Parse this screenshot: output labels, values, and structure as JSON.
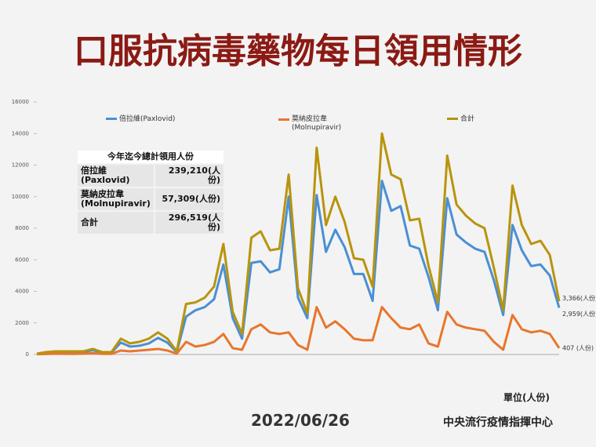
{
  "title": "口服抗病毒藥物每日領用情形",
  "date": "2022/06/26",
  "source": "中央流行疫情指揮中心",
  "unit": "單位(人份)",
  "summary": {
    "header": "今年迄今總計領用人份",
    "rows": [
      [
        "倍拉維\n(Paxlovid)",
        "239,210(人份)"
      ],
      [
        "莫納皮拉韋\n(Molnupiravir)",
        "57,309(人份)"
      ],
      [
        "合計",
        "296,519(人份)"
      ]
    ]
  },
  "chart_data": {
    "type": "line",
    "ylim": [
      0,
      16000
    ],
    "yticks": [
      0,
      2000,
      4000,
      6000,
      8000,
      10000,
      12000,
      14000,
      16000
    ],
    "categories": [
      null,
      null,
      null,
      null,
      null,
      null,
      null,
      null,
      null,
      null,
      null,
      null,
      null,
      null,
      null,
      null,
      null,
      null,
      null,
      null,
      null,
      null,
      null,
      null,
      null,
      null,
      null,
      null,
      null,
      null,
      null,
      null,
      null,
      null,
      null,
      null,
      null,
      null,
      null,
      null,
      null,
      null,
      null,
      null,
      null,
      null,
      null,
      null,
      null,
      null,
      null,
      null,
      null,
      null,
      null,
      null,
      null
    ],
    "series": [
      {
        "name": "倍拉維(Paxlovid)",
        "color": "#4a8fd4",
        "values": [
          30,
          120,
          150,
          160,
          160,
          150,
          270,
          110,
          110,
          750,
          500,
          550,
          700,
          1050,
          750,
          150,
          2400,
          2800,
          3000,
          3500,
          5700,
          2300,
          1000,
          5800,
          5900,
          5200,
          5400,
          10000,
          3600,
          2300,
          10100,
          6500,
          7900,
          6800,
          5100,
          5100,
          3400,
          11000,
          9100,
          9400,
          6900,
          6700,
          4900,
          2800,
          9900,
          7600,
          7100,
          6700,
          6500,
          4700,
          2500,
          8200,
          6600,
          5600,
          5700,
          5000,
          2959
        ],
        "value_labels": [
          null,
          null,
          null,
          null,
          null,
          null,
          null,
          null,
          null,
          null,
          null,
          null,
          null,
          null,
          null,
          null,
          null,
          null,
          null,
          null,
          null,
          null,
          null,
          null,
          null,
          null,
          null,
          null,
          null,
          null,
          null,
          null,
          null,
          null,
          null,
          null,
          null,
          null,
          null,
          null,
          null,
          null,
          null,
          null,
          null,
          null,
          null,
          null,
          null,
          null,
          null,
          null,
          null,
          null,
          null,
          null,
          "2,959(人份)"
        ]
      },
      {
        "name": "莫納皮拉韋\n(Molnupiravir)",
        "color": "#e8762c",
        "values": [
          20,
          30,
          50,
          40,
          40,
          50,
          80,
          40,
          40,
          250,
          200,
          250,
          300,
          350,
          250,
          50,
          800,
          500,
          600,
          800,
          1300,
          400,
          300,
          1600,
          1900,
          1400,
          1300,
          1400,
          600,
          300,
          3000,
          1700,
          2100,
          1600,
          1000,
          900,
          900,
          3000,
          2300,
          1700,
          1600,
          1900,
          700,
          500,
          2700,
          1900,
          1700,
          1600,
          1500,
          800,
          300,
          2500,
          1600,
          1400,
          1500,
          1300,
          407
        ],
        "value_labels": [
          null,
          null,
          null,
          null,
          null,
          null,
          null,
          null,
          null,
          null,
          null,
          null,
          null,
          null,
          null,
          null,
          null,
          null,
          null,
          null,
          null,
          null,
          null,
          null,
          null,
          null,
          null,
          null,
          null,
          null,
          null,
          null,
          null,
          null,
          null,
          null,
          null,
          null,
          null,
          null,
          null,
          null,
          null,
          null,
          null,
          null,
          null,
          null,
          null,
          null,
          null,
          null,
          null,
          null,
          null,
          null,
          "407 (人份)"
        ]
      },
      {
        "name": "合計",
        "color": "#b8940c",
        "values": [
          50,
          150,
          200,
          200,
          200,
          200,
          350,
          150,
          150,
          1000,
          700,
          800,
          1000,
          1400,
          1000,
          200,
          3200,
          3300,
          3600,
          4300,
          7000,
          2700,
          1300,
          7400,
          7800,
          6600,
          6700,
          11400,
          4200,
          2600,
          13100,
          8200,
          10000,
          8400,
          6100,
          6000,
          4300,
          14000,
          11400,
          11100,
          8500,
          8600,
          5600,
          3300,
          12600,
          9500,
          8800,
          8300,
          8000,
          5500,
          2800,
          10700,
          8200,
          7000,
          7200,
          6300,
          3366
        ],
        "value_labels": [
          null,
          null,
          null,
          null,
          null,
          null,
          null,
          null,
          null,
          null,
          null,
          null,
          null,
          null,
          null,
          null,
          null,
          null,
          null,
          null,
          null,
          null,
          null,
          null,
          null,
          null,
          null,
          null,
          null,
          null,
          null,
          null,
          null,
          null,
          null,
          null,
          null,
          null,
          null,
          null,
          null,
          null,
          null,
          null,
          null,
          null,
          null,
          null,
          null,
          null,
          null,
          null,
          null,
          null,
          null,
          null,
          "3,366(人份)"
        ]
      }
    ]
  }
}
